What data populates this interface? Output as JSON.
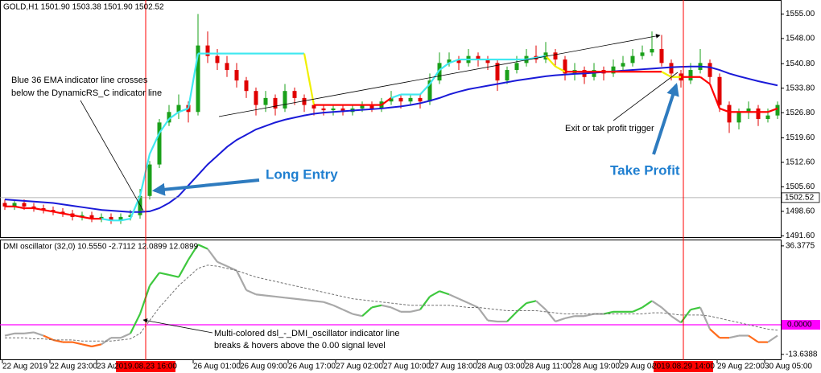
{
  "chart_data": [
    {
      "type": "candlestick",
      "title": "GOLD,H1 1501.90 1503.38 1501.90 1502.52",
      "ylim": [
        1491,
        1559
      ],
      "yticks": [
        {
          "value": 1555,
          "label": "1555.00"
        },
        {
          "value": 1548,
          "label": "1548.00"
        },
        {
          "value": 1540.8,
          "label": "1540.80"
        },
        {
          "value": 1533.8,
          "label": "1533.80"
        },
        {
          "value": 1526.8,
          "label": "1526.80"
        },
        {
          "value": 1519.6,
          "label": "1519.60"
        },
        {
          "value": 1512.6,
          "label": "1512.60"
        },
        {
          "value": 1505.6,
          "label": "1505.60"
        },
        {
          "value": 1498.6,
          "label": "1498.60"
        },
        {
          "value": 1491.6,
          "label": "1491.60"
        }
      ],
      "price_line": 1502.52,
      "up_color": "#1aa01a",
      "down_color": "#e00000",
      "open": [
        1501,
        1500,
        1501,
        1500,
        1499.5,
        1499,
        1498.5,
        1498,
        1497,
        1497.5,
        1496.5,
        1497,
        1496,
        1497,
        1497.5,
        1503,
        1512,
        1524,
        1527,
        1529,
        1527,
        1546,
        1543,
        1541,
        1539,
        1536,
        1533,
        1529,
        1531,
        1528,
        1533,
        1531,
        1529,
        1528,
        1527.5,
        1528,
        1527,
        1528,
        1529,
        1528,
        1530,
        1531,
        1530,
        1531,
        1530,
        1536,
        1541,
        1542,
        1541,
        1543,
        1542,
        1541,
        1536,
        1539,
        1541,
        1543,
        1542,
        1544,
        1542,
        1538,
        1539,
        1537,
        1539,
        1538,
        1540,
        1541,
        1543,
        1544,
        1545,
        1541,
        1538,
        1536,
        1539,
        1541,
        1537,
        1529,
        1524,
        1527,
        1528,
        1525,
        1526
      ],
      "high": [
        1502,
        1502,
        1502,
        1501,
        1500.5,
        1500,
        1499.5,
        1499,
        1498.5,
        1498.5,
        1498,
        1498,
        1498,
        1499,
        1505,
        1513,
        1525,
        1529,
        1532,
        1530,
        1555,
        1550,
        1545,
        1543,
        1541,
        1537,
        1534,
        1533,
        1532,
        1535,
        1534,
        1532,
        1530,
        1529,
        1529,
        1529,
        1529,
        1530,
        1530,
        1531,
        1533,
        1532,
        1532,
        1532,
        1538,
        1544,
        1544,
        1543,
        1545,
        1544,
        1543,
        1542,
        1540,
        1543,
        1545,
        1546,
        1547,
        1545,
        1543,
        1541,
        1540,
        1541,
        1540,
        1542,
        1543,
        1545,
        1546,
        1550,
        1549,
        1542,
        1539,
        1541,
        1545,
        1542,
        1538,
        1530,
        1528,
        1530,
        1529,
        1528,
        1530
      ],
      "low": [
        1499,
        1499,
        1499,
        1498.5,
        1498,
        1497.5,
        1497,
        1496,
        1496,
        1495.5,
        1495.5,
        1495,
        1495,
        1496,
        1496.5,
        1502,
        1511,
        1523,
        1525,
        1524,
        1526,
        1541,
        1539,
        1537,
        1534,
        1531,
        1526,
        1527,
        1526,
        1527,
        1529,
        1527,
        1526,
        1526,
        1526,
        1526,
        1526,
        1527,
        1527,
        1527,
        1529,
        1528,
        1529,
        1528,
        1529,
        1535,
        1540,
        1539,
        1540,
        1540,
        1539,
        1533,
        1535,
        1538,
        1540,
        1541,
        1541,
        1540,
        1536,
        1536,
        1535,
        1536,
        1536,
        1537,
        1539,
        1540,
        1542,
        1543,
        1540,
        1536,
        1534,
        1535,
        1538,
        1535,
        1527,
        1521,
        1522,
        1525,
        1523,
        1524,
        1525
      ],
      "close": [
        1500,
        1501,
        1500,
        1499.5,
        1499,
        1498.5,
        1498,
        1497,
        1497.5,
        1496.5,
        1497,
        1496,
        1497,
        1497.5,
        1503,
        1512,
        1524,
        1527,
        1529,
        1527,
        1546,
        1543,
        1541,
        1539,
        1536,
        1533,
        1529,
        1531,
        1528,
        1533,
        1531,
        1529,
        1528,
        1527.5,
        1528,
        1527,
        1528,
        1529,
        1528,
        1530,
        1531,
        1530,
        1531,
        1530,
        1536,
        1541,
        1542,
        1541,
        1543,
        1542,
        1541,
        1536,
        1539,
        1541,
        1543,
        1542,
        1544,
        1542,
        1538,
        1539,
        1537,
        1539,
        1538,
        1540,
        1541,
        1543,
        1544,
        1545,
        1541,
        1538,
        1536,
        1539,
        1541,
        1537,
        1529,
        1524,
        1527,
        1528,
        1525,
        1526,
        1529
      ],
      "series": [
        {
          "color": "#1a1ad8",
          "values": [
            1502,
            1501.8,
            1501.6,
            1501.4,
            1501.2,
            1501,
            1500.6,
            1500.2,
            1499.8,
            1499.4,
            1499,
            1498.8,
            1498.6,
            1498.4,
            1498.4,
            1498.6,
            1499.5,
            1501,
            1503,
            1506,
            1509,
            1512,
            1514.5,
            1517,
            1519,
            1520.5,
            1522,
            1523,
            1524,
            1524.8,
            1525.4,
            1526,
            1526.5,
            1526.8,
            1527,
            1527.2,
            1527.4,
            1527.6,
            1527.8,
            1528,
            1528.3,
            1528.6,
            1529,
            1529.5,
            1530.2,
            1531,
            1532,
            1532.8,
            1533.5,
            1534,
            1534.5,
            1535,
            1535.5,
            1536,
            1536.4,
            1536.8,
            1537.2,
            1537.5,
            1537.7,
            1537.9,
            1538,
            1538.2,
            1538.4,
            1538.6,
            1538.8,
            1539,
            1539.2,
            1539.4,
            1539.6,
            1539.8,
            1539.9,
            1540,
            1540,
            1539.8,
            1539,
            1538,
            1537.2,
            1536.5,
            1535.8,
            1535.2,
            1534.6
          ]
        },
        {
          "values": [
            1500,
            1500,
            1499.5,
            1499.5,
            1499,
            1498.5,
            1498,
            1497.5,
            1497,
            1496.5,
            1496.5,
            1496,
            1496,
            1496.5,
            1503,
            1515,
            1521,
            1525,
            1527,
            1528,
            1543.7,
            1543.7,
            1543.7,
            1543.7,
            1543.7,
            1543.7,
            1543.7,
            1543.7,
            1543.7,
            1543.7,
            1543.7,
            1543.7,
            1529,
            1529,
            1529,
            1529,
            1529,
            1529,
            1529,
            1529,
            1531,
            1532,
            1532,
            1532,
            1535,
            1539,
            1541,
            1542,
            1542,
            1542,
            1542,
            1542,
            1542,
            1542,
            1542,
            1542.5,
            1543,
            1540,
            1538.5,
            1538.5,
            1538.5,
            1538.5,
            1538.5,
            1538.5,
            1538.5,
            1538.5,
            1538.5,
            1538.5,
            1538.5,
            1537,
            1537,
            1537,
            1537,
            1535,
            1528,
            1527,
            1527,
            1527,
            1527,
            1527,
            1528
          ],
          "colors": [
            "#ff0000",
            "#ff0000",
            "#ff0000",
            "#ff0000",
            "#ff0000",
            "#ff0000",
            "#ff0000",
            "#ff0000",
            "#ff0000",
            "#ff0000",
            "#ff0000",
            "#40e8f0",
            "#40e8f0",
            "#40e8f0",
            "#40e8f0",
            "#40e8f0",
            "#40e8f0",
            "#40e8f0",
            "#40e8f0",
            "#40e8f0",
            "#40e8f0",
            "#40e8f0",
            "#40e8f0",
            "#40e8f0",
            "#40e8f0",
            "#40e8f0",
            "#40e8f0",
            "#40e8f0",
            "#40e8f0",
            "#40e8f0",
            "#40e8f0",
            "#40e8f0",
            "#f0f000",
            "#ff0000",
            "#ff0000",
            "#ff0000",
            "#ff0000",
            "#ff0000",
            "#ff0000",
            "#ff0000",
            "#ff0000",
            "#40e8f0",
            "#40e8f0",
            "#40e8f0",
            "#40e8f0",
            "#40e8f0",
            "#40e8f0",
            "#40e8f0",
            "#40e8f0",
            "#40e8f0",
            "#40e8f0",
            "#40e8f0",
            "#40e8f0",
            "#40e8f0",
            "#40e8f0",
            "#40e8f0",
            "#40e8f0",
            "#f0f000",
            "#f0f000",
            "#ff0000",
            "#ff0000",
            "#ff0000",
            "#ff0000",
            "#ff0000",
            "#ff0000",
            "#ff0000",
            "#ff0000",
            "#ff0000",
            "#ff0000",
            "#f0f000",
            "#f0f000",
            "#ff0000",
            "#ff0000",
            "#ff0000",
            "#ff0000",
            "#ff0000",
            "#ff0000",
            "#ff0000",
            "#ff0000",
            "#ff0000",
            "#ff0000"
          ]
        }
      ],
      "vlines": {
        "color": "#ff0000",
        "labels": [
          "2019.08.23 16:00",
          "2019.08.29 14:00"
        ]
      },
      "xtick_labels": [
        "22 Aug 2019",
        "22 Aug 23:00",
        "23 Au",
        "26 Aug 01:00",
        "26 Aug 09:00",
        "26 Aug 17:00",
        "27 Aug 02:00",
        "27 Aug 10:00",
        "27 Aug 18:00",
        "28 Aug 03:00",
        "28 Aug 11:00",
        "28 Aug 19:00",
        "29 Aug 04:00",
        "29 Aug 22:00",
        "30 Aug 05:00"
      ],
      "annotations": [
        "Blue 36 EMA indicator line crosses",
        "below the DynamicRS_C indicator line",
        "Long Entry",
        "Take Profit",
        "Exit or tak profit trigger"
      ]
    },
    {
      "type": "line",
      "title": "DMI oscillator (32,0) 10.5550 -2.7112 12.0899 12.0899",
      "ylim": [
        -16.3,
        39.3
      ],
      "yticks": [
        36.3775,
        -13.6388
      ],
      "level": {
        "value": 0,
        "label": "0.0000"
      },
      "level_color": "#ff00ff",
      "series": [
        {
          "values": [
            -5,
            -4,
            -4,
            -3.5,
            -5,
            -7,
            -8,
            -8,
            -9,
            -10,
            -9,
            -6,
            -6,
            -4,
            5,
            18,
            24,
            23,
            22,
            30,
            37,
            35,
            29,
            27,
            25,
            16,
            14,
            13.5,
            13,
            12.5,
            12,
            11.5,
            11,
            10.5,
            9,
            7,
            5,
            4,
            8,
            9,
            8,
            6,
            6,
            7,
            13,
            15.5,
            14,
            12,
            10,
            8,
            2,
            1.5,
            1.5,
            6,
            10,
            11,
            7,
            1.5,
            3,
            4,
            4,
            5,
            5,
            6,
            6,
            6,
            8,
            11,
            8,
            4,
            1,
            7,
            8,
            -2,
            -6,
            -6,
            -5,
            -5,
            -8,
            -8,
            -5
          ],
          "colors": [
            "#a8a8a8",
            "#a8a8a8",
            "#a8a8a8",
            "#a8a8a8",
            "#a8a8a8",
            "#ff6a1a",
            "#ff6a1a",
            "#ff6a1a",
            "#ff6a1a",
            "#ff6a1a",
            "#ff6a1a",
            "#a8a8a8",
            "#a8a8a8",
            "#a8a8a8",
            "#3ec83e",
            "#3ec83e",
            "#3ec83e",
            "#3ec83e",
            "#3ec83e",
            "#3ec83e",
            "#3ec83e",
            "#3ec83e",
            "#a8a8a8",
            "#a8a8a8",
            "#a8a8a8",
            "#a8a8a8",
            "#a8a8a8",
            "#a8a8a8",
            "#a8a8a8",
            "#a8a8a8",
            "#a8a8a8",
            "#a8a8a8",
            "#a8a8a8",
            "#a8a8a8",
            "#a8a8a8",
            "#a8a8a8",
            "#a8a8a8",
            "#a8a8a8",
            "#3ec83e",
            "#3ec83e",
            "#a8a8a8",
            "#a8a8a8",
            "#a8a8a8",
            "#a8a8a8",
            "#3ec83e",
            "#3ec83e",
            "#3ec83e",
            "#a8a8a8",
            "#a8a8a8",
            "#a8a8a8",
            "#a8a8a8",
            "#a8a8a8",
            "#a8a8a8",
            "#3ec83e",
            "#3ec83e",
            "#3ec83e",
            "#a8a8a8",
            "#a8a8a8",
            "#a8a8a8",
            "#a8a8a8",
            "#a8a8a8",
            "#a8a8a8",
            "#a8a8a8",
            "#3ec83e",
            "#3ec83e",
            "#3ec83e",
            "#3ec83e",
            "#3ec83e",
            "#a8a8a8",
            "#a8a8a8",
            "#a8a8a8",
            "#3ec83e",
            "#3ec83e",
            "#a8a8a8",
            "#ff6a1a",
            "#ff6a1a",
            "#a8a8a8",
            "#a8a8a8",
            "#ff6a1a",
            "#ff6a1a",
            "#a8a8a8"
          ]
        },
        {
          "color": "#707070",
          "dashed": true,
          "values": [
            -6,
            -6,
            -6,
            -6.5,
            -6.5,
            -7,
            -7,
            -7,
            -7.5,
            -7.5,
            -7.5,
            -7.5,
            -7,
            -6.5,
            -4,
            2,
            8,
            13,
            18,
            22,
            26,
            27.5,
            27,
            26,
            25,
            23.5,
            22,
            21,
            20,
            19,
            18,
            17,
            16,
            15,
            14,
            13,
            12,
            11.5,
            11,
            10.5,
            10,
            9.5,
            9,
            9,
            9,
            9,
            9,
            8.5,
            8,
            8,
            7.5,
            7,
            6.5,
            6.5,
            6.5,
            6.5,
            6,
            5.5,
            5,
            5,
            5,
            5,
            5,
            5,
            5,
            5,
            5,
            5.5,
            5.5,
            5,
            4.5,
            4.5,
            4.5,
            4,
            3,
            2,
            1,
            0,
            -1,
            -2,
            -2.5
          ]
        }
      ],
      "annotations": [
        "Multi-colored dsl_-_DMI_oscillator indicator line",
        "breaks & hovers above the 0.00 signal level"
      ]
    }
  ]
}
